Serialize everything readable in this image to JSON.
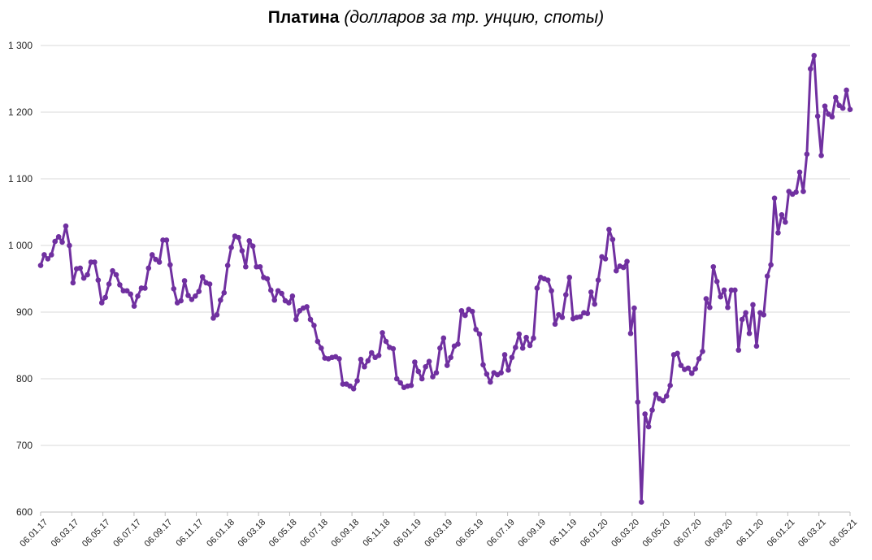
{
  "chart_data": {
    "type": "line",
    "title": "Платина",
    "subtitle": "(долларов за тр. унцию, споты)",
    "xlabel": "",
    "ylabel": "",
    "ylim": [
      600,
      1300
    ],
    "yticks": [
      600,
      700,
      800,
      900,
      1000,
      1100,
      1200,
      1300
    ],
    "ytick_labels": [
      "600",
      "700",
      "800",
      "900",
      "1 000",
      "1 100",
      "1 200",
      "1 300"
    ],
    "xtick_labels": [
      "06.01.17",
      "06.03.17",
      "06.05.17",
      "06.07.17",
      "06.09.17",
      "06.11.17",
      "06.01.18",
      "06.03.18",
      "06.05.18",
      "06.07.18",
      "06.09.18",
      "06.11.18",
      "06.01.19",
      "06.03.19",
      "06.05.19",
      "06.07.19",
      "06.09.19",
      "06.11.19",
      "06.01.20",
      "06.03.20",
      "06.05.20",
      "06.07.20",
      "06.09.20",
      "06.11.20",
      "06.01.21",
      "06.03.21",
      "06.05.21"
    ],
    "grid": true,
    "legend": "none",
    "color": "#7030a0",
    "series": [
      {
        "values": [
          970,
          986,
          980,
          986,
          1006,
          1013,
          1005,
          1029,
          1000,
          944,
          965,
          966,
          951,
          956,
          975,
          975,
          948,
          914,
          922,
          942,
          962,
          956,
          941,
          932,
          932,
          927,
          909,
          924,
          936,
          936,
          966,
          986,
          979,
          975,
          1008,
          1008,
          971,
          935,
          914,
          917,
          947,
          925,
          919,
          924,
          931,
          953,
          944,
          942,
          891,
          896,
          918,
          929,
          970,
          997,
          1014,
          1012,
          992,
          968,
          1007,
          999,
          968,
          968,
          952,
          950,
          933,
          918,
          932,
          928,
          917,
          914,
          924,
          889,
          902,
          906,
          908,
          889,
          880,
          856,
          846,
          831,
          830,
          832,
          833,
          830,
          792,
          792,
          789,
          785,
          797,
          829,
          818,
          827,
          839,
          832,
          835,
          869,
          856,
          847,
          845,
          800,
          794,
          787,
          789,
          790,
          825,
          811,
          800,
          818,
          826,
          803,
          809,
          846,
          861,
          820,
          832,
          849,
          852,
          902,
          895,
          904,
          901,
          874,
          867,
          821,
          807,
          795,
          809,
          806,
          809,
          836,
          813,
          832,
          847,
          867,
          846,
          862,
          850,
          861,
          936,
          952,
          950,
          948,
          932,
          882,
          896,
          892,
          926,
          952,
          890,
          892,
          893,
          899,
          898,
          930,
          912,
          948,
          983,
          980,
          1024,
          1009,
          962,
          969,
          967,
          976,
          868,
          906,
          765,
          615,
          747,
          728,
          753,
          777,
          770,
          767,
          774,
          790,
          836,
          838,
          820,
          814,
          816,
          808,
          815,
          830,
          841,
          920,
          907,
          968,
          946,
          923,
          933,
          907,
          933,
          933,
          843,
          889,
          899,
          868,
          911,
          849,
          899,
          896,
          954,
          971,
          1071,
          1019,
          1046,
          1035,
          1081,
          1077,
          1080,
          1110,
          1081,
          1137,
          1265,
          1285,
          1194,
          1135,
          1209,
          1197,
          1193,
          1222,
          1210,
          1206,
          1233,
          1204
        ]
      }
    ]
  }
}
